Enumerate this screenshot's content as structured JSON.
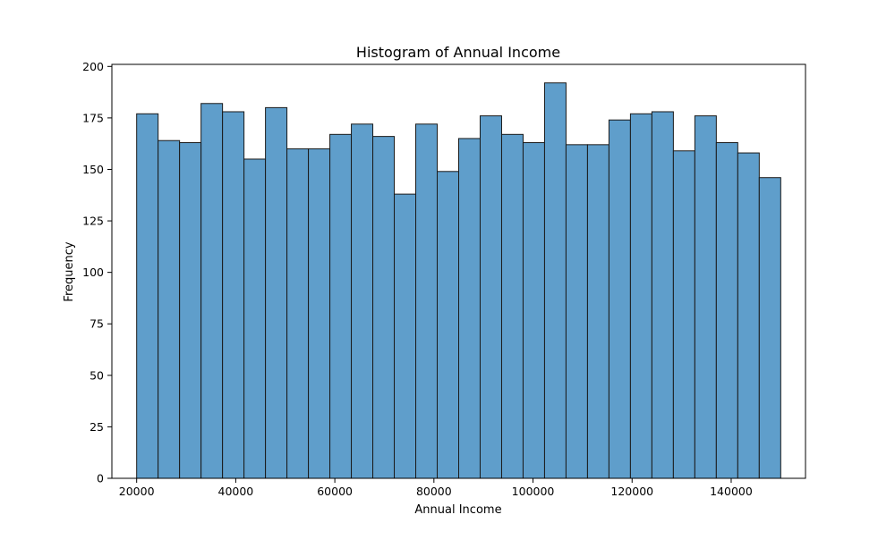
{
  "chart_data": {
    "type": "bar",
    "title": "Histogram of Annual Income",
    "xlabel": "Annual Income",
    "ylabel": "Frequency",
    "xlim": [
      15000,
      155000
    ],
    "ylim": [
      0,
      201
    ],
    "x_ticks": [
      20000,
      40000,
      60000,
      80000,
      100000,
      120000,
      140000
    ],
    "y_ticks": [
      0,
      25,
      50,
      75,
      100,
      125,
      150,
      175,
      200
    ],
    "bin_start": 20000,
    "bin_end": 150000,
    "bin_width": 4333.33,
    "values": [
      177,
      164,
      163,
      182,
      178,
      155,
      180,
      160,
      160,
      167,
      172,
      166,
      138,
      172,
      149,
      165,
      176,
      167,
      163,
      192,
      162,
      162,
      174,
      177,
      178,
      159,
      176,
      163,
      158,
      146
    ],
    "bar_color": "#5f9ecb",
    "edge_color": "#1a1a1a",
    "grid": false
  }
}
